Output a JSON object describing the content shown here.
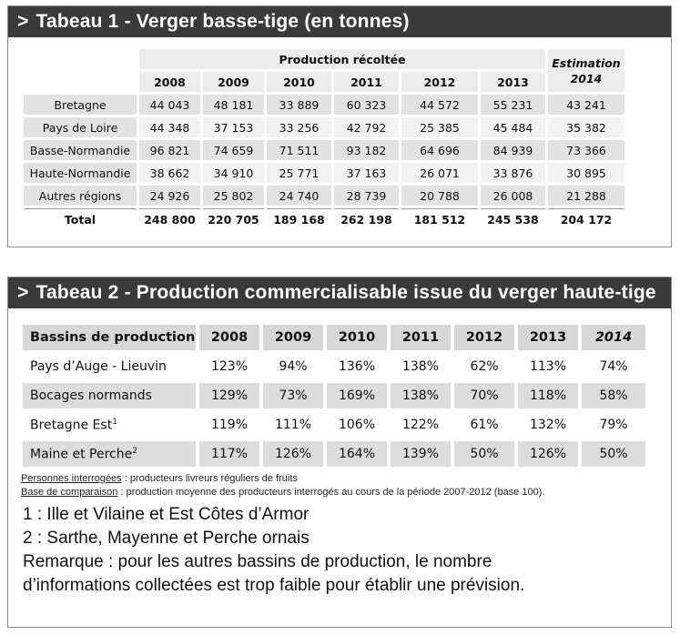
{
  "table1": {
    "title": "Tabeau 1 - Verger basse-tige (en tonnes)",
    "group_header": "Production récoltée",
    "estimation_header": "Estimation 2014",
    "years": [
      "2008",
      "2009",
      "2010",
      "2011",
      "2012",
      "2013"
    ],
    "rows": [
      {
        "label": "Bretagne",
        "values": [
          "44 043",
          "48 181",
          "33 889",
          "60 323",
          "44 572",
          "55 231",
          "43 241"
        ]
      },
      {
        "label": "Pays de Loire",
        "values": [
          "44 348",
          "37 153",
          "33 256",
          "42 792",
          "25 385",
          "45 484",
          "35 382"
        ]
      },
      {
        "label": "Basse-Normandie",
        "values": [
          "96 821",
          "74 659",
          "71 511",
          "93 182",
          "64 696",
          "84 939",
          "73 366"
        ]
      },
      {
        "label": "Haute-Normandie",
        "values": [
          "38 662",
          "34 910",
          "25 771",
          "37 163",
          "26 071",
          "33 876",
          "30 895"
        ]
      },
      {
        "label": "Autres régions",
        "values": [
          "24 926",
          "25 802",
          "24 740",
          "28 739",
          "20 788",
          "26 008",
          "21 288"
        ]
      }
    ],
    "total": {
      "label": "Total",
      "values": [
        "248 800",
        "220 705",
        "189 168",
        "262 198",
        "181 512",
        "245 538",
        "204 172"
      ]
    }
  },
  "table2": {
    "title": "Tabeau 2 - Production commercialisable issue du verger haute-tige",
    "headers": [
      "Bassins de production",
      "2008",
      "2009",
      "2010",
      "2011",
      "2012",
      "2013",
      "2014"
    ],
    "rows": [
      {
        "label": "Pays d’Auge - Lieuvin",
        "sup": "",
        "values": [
          "123%",
          "94%",
          "136%",
          "138%",
          "62%",
          "113%",
          "74%"
        ]
      },
      {
        "label": "Bocages normands",
        "sup": "",
        "values": [
          "129%",
          "73%",
          "169%",
          "138%",
          "70%",
          "118%",
          "58%"
        ]
      },
      {
        "label": "Bretagne Est",
        "sup": "1",
        "values": [
          "119%",
          "111%",
          "106%",
          "122%",
          "61%",
          "132%",
          "79%"
        ]
      },
      {
        "label": "Maine et Perche",
        "sup": "2",
        "values": [
          "117%",
          "126%",
          "164%",
          "139%",
          "50%",
          "126%",
          "50%"
        ]
      }
    ]
  },
  "notes": {
    "n1_key": "Personnes interrogées",
    "n1_text": " : producteurs livreurs réguliers de  fruits",
    "n2_key": "Base de comparaison",
    "n2_text": " : production moyenne des producteurs interrogés au cours de la période 2007-2012 (base 100).",
    "f1": "1 : Ille et Vilaine et Est Côtes d’Armor",
    "f2": "2 : Sarthe, Mayenne et Perche ornais",
    "f3": "Remarque : pour les autres bassins de production, le nombre",
    "f4": "d’informations collectées est trop faible pour établir une prévision."
  }
}
